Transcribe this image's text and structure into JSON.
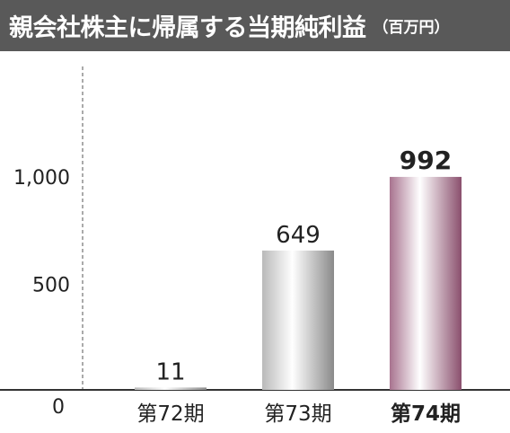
{
  "header": {
    "title": "親会社株主に帰属する当期純利益",
    "unit": "（百万円）"
  },
  "chart_data": {
    "type": "bar",
    "title": "親会社株主に帰属する当期純利益",
    "unit": "（百万円）",
    "categories": [
      "第72期",
      "第73期",
      "第74期"
    ],
    "values": [
      11,
      649,
      992
    ],
    "value_labels": [
      "11",
      "649",
      "992"
    ],
    "highlight_index": 2,
    "ylim": [
      0,
      1500
    ],
    "yticks": [
      0,
      500,
      1000
    ],
    "ytick_labels": [
      "0",
      "500",
      "1,000"
    ],
    "grid": false,
    "colors": {
      "bar_normal": "#c8c8c8",
      "bar_highlight": "#b07a96",
      "axis": "#333333",
      "text": "#222222"
    }
  }
}
